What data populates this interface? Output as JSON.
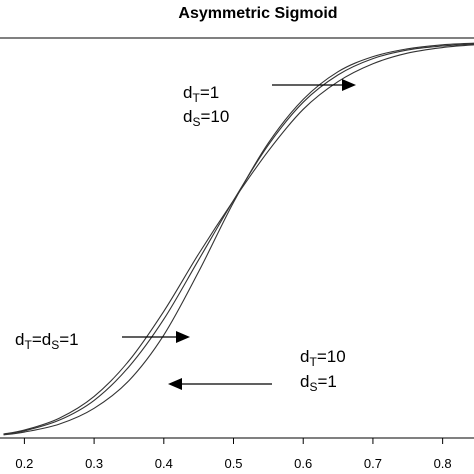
{
  "chart_data": {
    "type": "line",
    "title": "Asymmetric Sigmoid",
    "xlabel": "",
    "ylabel": "",
    "xlim": [
      0.165,
      0.845
    ],
    "ylim": [
      0,
      1
    ],
    "x_ticks": [
      "0.2",
      "0.3",
      "0.4",
      "0.5",
      "0.6",
      "0.7",
      "0.8"
    ],
    "grid": false,
    "series": [
      {
        "x": [
          0.17,
          0.2,
          0.25,
          0.3,
          0.35,
          0.4,
          0.45,
          0.5,
          0.55,
          0.6,
          0.65,
          0.7,
          0.75,
          0.8,
          0.845
        ],
        "y": [
          0.01,
          0.018,
          0.045,
          0.095,
          0.18,
          0.3,
          0.45,
          0.6,
          0.74,
          0.848,
          0.917,
          0.958,
          0.98,
          0.99,
          0.995
        ]
      },
      {
        "x": [
          0.17,
          0.2,
          0.25,
          0.3,
          0.35,
          0.4,
          0.45,
          0.5,
          0.55,
          0.6,
          0.65,
          0.7,
          0.75,
          0.8,
          0.845
        ],
        "y": [
          0.01,
          0.02,
          0.05,
          0.105,
          0.195,
          0.32,
          0.465,
          0.6,
          0.725,
          0.83,
          0.9,
          0.945,
          0.972,
          0.986,
          0.993
        ]
      },
      {
        "x": [
          0.17,
          0.2,
          0.25,
          0.3,
          0.35,
          0.4,
          0.45,
          0.5,
          0.55,
          0.6,
          0.65,
          0.7,
          0.75,
          0.8,
          0.845
        ],
        "y": [
          0.008,
          0.015,
          0.035,
          0.075,
          0.145,
          0.26,
          0.42,
          0.595,
          0.745,
          0.855,
          0.925,
          0.963,
          0.983,
          0.993,
          0.997
        ]
      }
    ],
    "annotations": [
      {
        "main": "d",
        "sub": "T",
        "rest": "=1"
      },
      {
        "main": "d",
        "sub": "S",
        "rest": "=10"
      },
      {
        "main": "d",
        "sub": "T",
        "mid": "=d",
        "sub2": "S",
        "rest": "=1"
      },
      {
        "main": "d",
        "sub": "T",
        "rest": "=10"
      },
      {
        "main": "d",
        "sub": "S",
        "rest": "=1"
      }
    ]
  }
}
